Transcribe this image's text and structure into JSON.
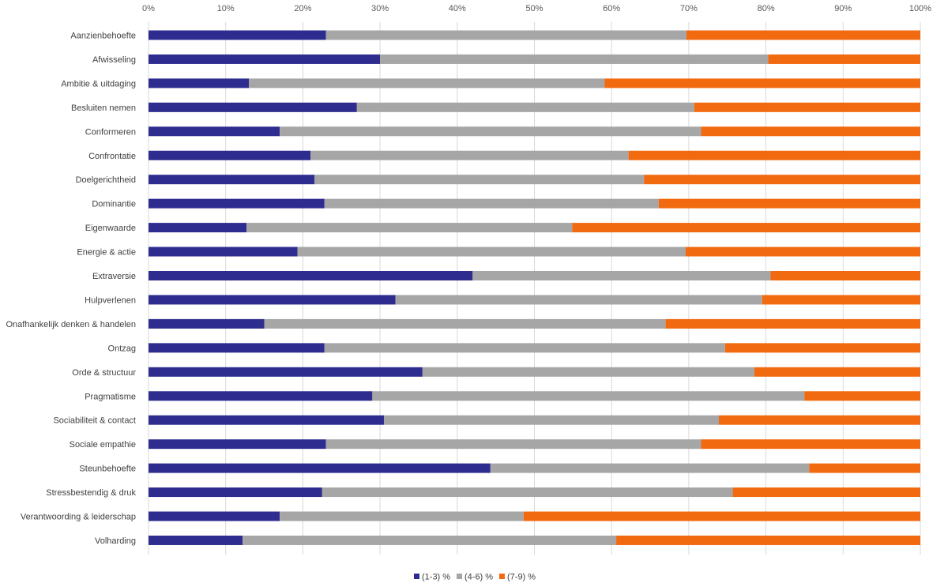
{
  "chart_data": {
    "type": "bar",
    "orientation": "horizontal",
    "stacked": "percent",
    "xlim": [
      0,
      100
    ],
    "x_ticks": [
      "0%",
      "10%",
      "20%",
      "30%",
      "40%",
      "50%",
      "60%",
      "70%",
      "80%",
      "90%",
      "100%"
    ],
    "x_axis_position": "top",
    "grid": true,
    "legend_position": "bottom",
    "categories": [
      "Aanzienbehoefte",
      "Afwisseling",
      "Ambitie & uitdaging",
      "Besluiten nemen",
      "Conformeren",
      "Confrontatie",
      "Doelgerichtheid",
      "Dominantie",
      "Eigenwaarde",
      "Energie & actie",
      "Extraversie",
      "Hulpverlenen",
      "Onafhankelijk denken  & handelen",
      "Ontzag",
      "Orde & structuur",
      "Pragmatisme",
      "Sociabiliteit & contact",
      "Sociale empathie",
      "Steunbehoefte",
      "Stressbestendig & druk",
      "Verantwoording & leiderschap",
      "Volharding"
    ],
    "series": [
      {
        "name": "(1-3) %",
        "color": "#2e2d8f",
        "values": [
          23,
          30,
          13,
          27,
          17,
          21,
          21.5,
          22.8,
          12.7,
          19.3,
          42,
          32,
          15,
          22.8,
          35.5,
          29,
          30.5,
          23,
          44.3,
          22.5,
          17,
          12.2
        ]
      },
      {
        "name": "(4-6) %",
        "color": "#a6a6a6",
        "values": [
          46.7,
          50.3,
          46.1,
          43.7,
          54.6,
          41.2,
          42.7,
          43.3,
          42.2,
          50.3,
          38.6,
          47.5,
          52,
          51.9,
          43,
          56,
          43.4,
          48.6,
          41.3,
          53.2,
          31.6,
          48.4
        ]
      },
      {
        "name": "(7-9) %",
        "color": "#f26a10",
        "values": [
          30.3,
          19.7,
          40.9,
          29.3,
          28.4,
          37.8,
          35.8,
          33.9,
          45.1,
          30.4,
          19.4,
          20.5,
          33,
          25.3,
          21.5,
          15,
          26.1,
          28.4,
          14.4,
          24.3,
          51.4,
          39.4
        ]
      }
    ]
  }
}
